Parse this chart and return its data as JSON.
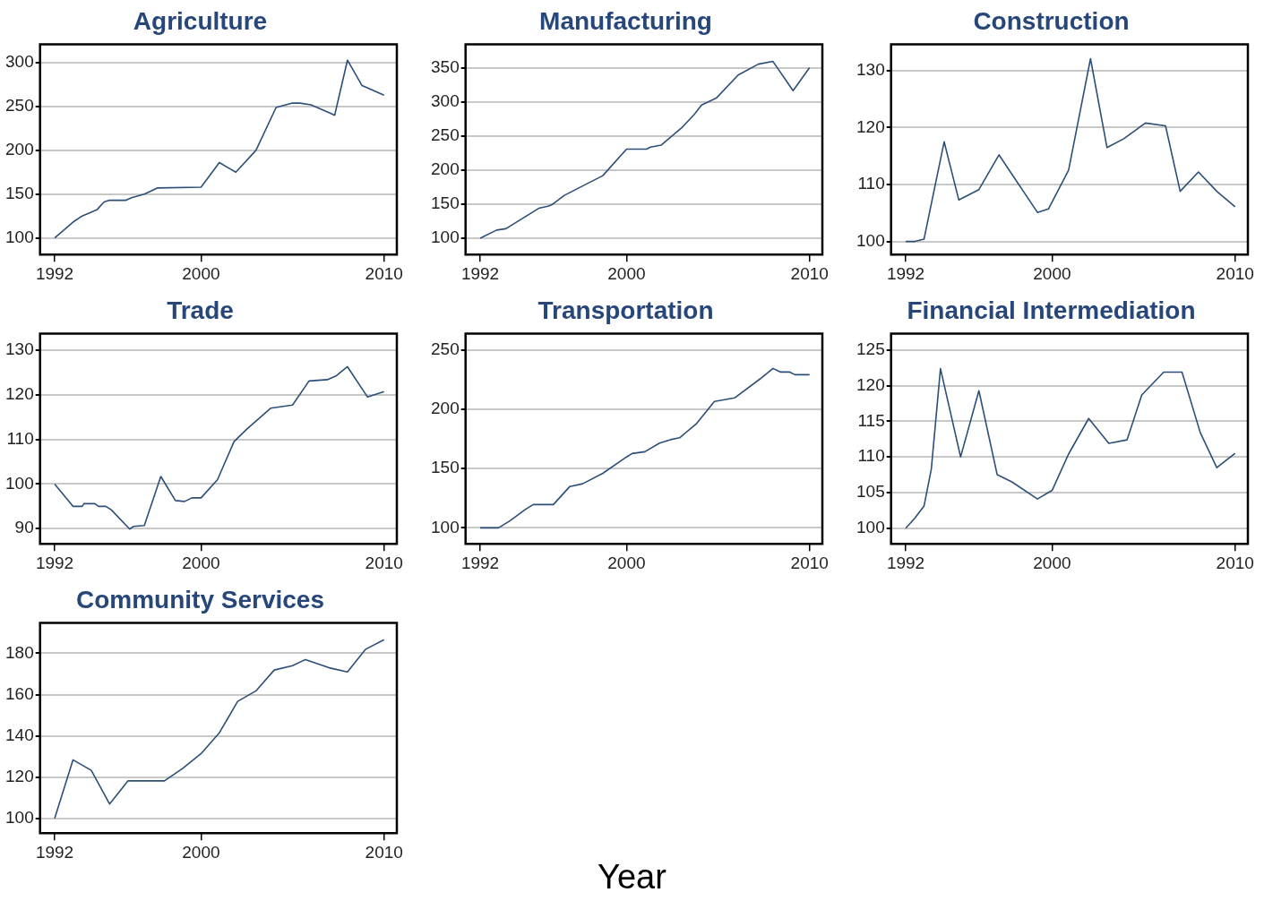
{
  "chart_data": [
    {
      "type": "line",
      "title": "Agriculture",
      "color": "#2c4f78",
      "grid": "y",
      "marker": "none",
      "xlim": [
        1991.2,
        2010.7
      ],
      "xticks": [
        1992,
        2000,
        2010
      ],
      "ylim": [
        81,
        321
      ],
      "yticks": [
        100,
        150,
        200,
        250,
        300
      ],
      "x": [
        1992,
        1992.5,
        1993,
        1993.5,
        1994.3,
        1994.7,
        1995,
        1995.9,
        1996.2,
        1996.9,
        1997.6,
        2000,
        2001,
        2001.9,
        2003,
        2004.1,
        2005,
        2005.4,
        2006,
        2007.1,
        2007.3,
        2008,
        2008.8,
        2010
      ],
      "values": [
        100,
        109,
        118,
        125,
        132,
        141,
        143,
        143,
        146,
        150,
        157,
        158,
        186,
        175,
        200,
        249,
        254,
        254,
        252,
        242,
        240,
        303,
        274,
        263
      ]
    },
    {
      "type": "line",
      "title": "Manufacturing",
      "color": "#2c4f78",
      "grid": "y",
      "marker": "none",
      "xlim": [
        1991.2,
        2010.7
      ],
      "xticks": [
        1992,
        2000,
        2010
      ],
      "ylim": [
        76,
        385
      ],
      "yticks": [
        100,
        150,
        200,
        250,
        300,
        350
      ],
      "x": [
        1992,
        1992.9,
        1993.4,
        1995.2,
        1995.7,
        1995.9,
        1996.6,
        1998.7,
        2000,
        2001.1,
        2001.3,
        2001.9,
        2003,
        2003.7,
        2004.1,
        2004.9,
        2006.1,
        2007.2,
        2008,
        2009.1,
        2010
      ],
      "values": [
        100,
        112,
        114,
        144,
        147,
        149,
        163,
        192,
        231,
        231,
        234,
        237,
        262,
        282,
        296,
        306,
        340,
        356,
        360,
        317,
        351
      ]
    },
    {
      "type": "line",
      "title": "Construction",
      "color": "#2c4f78",
      "grid": "y",
      "marker": "none",
      "xlim": [
        1991.2,
        2010.7
      ],
      "xticks": [
        1992,
        2000,
        2010
      ],
      "ylim": [
        97.7,
        134.6
      ],
      "yticks": [
        100,
        110,
        120,
        130
      ],
      "x": [
        1992,
        1992.5,
        1993,
        1994.1,
        1994.9,
        1996,
        1997.1,
        1999.2,
        1999.8,
        2000.9,
        2002.1,
        2003,
        2003.9,
        2005.1,
        2006.2,
        2007,
        2008,
        2009,
        2010
      ],
      "values": [
        100,
        100,
        100.4,
        117.5,
        107.3,
        109.1,
        115.2,
        105.1,
        105.7,
        112.5,
        132.1,
        116.5,
        118,
        120.8,
        120.3,
        108.8,
        112.2,
        108.8,
        106.1
      ]
    },
    {
      "type": "line",
      "title": "Trade",
      "color": "#2c4f78",
      "grid": "y",
      "marker": "none",
      "xlim": [
        1991.2,
        2010.7
      ],
      "xticks": [
        1992,
        2000,
        2010
      ],
      "ylim": [
        86.6,
        133.7
      ],
      "yticks": [
        90,
        100,
        110,
        120,
        130
      ],
      "x": [
        1992,
        1993,
        1993.5,
        1993.6,
        1994.2,
        1994.4,
        1994.8,
        1995.1,
        1996.1,
        1996.3,
        1996.9,
        1997.8,
        1998.6,
        1999.1,
        1999.5,
        2000,
        2000.9,
        2001.8,
        2002.5,
        2003.8,
        2005,
        2005.9,
        2006.9,
        2007.4,
        2008,
        2009.1,
        2010
      ],
      "values": [
        100,
        95,
        95,
        95.6,
        95.6,
        95,
        95,
        94.2,
        89.9,
        90.5,
        90.7,
        101.7,
        96.3,
        96.1,
        96.9,
        96.9,
        101,
        109.5,
        112.3,
        117,
        117.7,
        123.1,
        123.4,
        124.3,
        126.3,
        119.5,
        120.7
      ]
    },
    {
      "type": "line",
      "title": "Transportation",
      "color": "#2c4f78",
      "grid": "y",
      "marker": "none",
      "xlim": [
        1991.2,
        2010.7
      ],
      "xticks": [
        1992,
        2000,
        2010
      ],
      "ylim": [
        86.5,
        263.8
      ],
      "yticks": [
        100,
        150,
        200,
        250
      ],
      "x": [
        1992,
        1993,
        1993.6,
        1994.5,
        1994.9,
        1996,
        1996.9,
        1997.6,
        1998.7,
        2000,
        2000.3,
        2001,
        2001.8,
        2002.4,
        2002.9,
        2003.8,
        2004.8,
        2005.9,
        2007.3,
        2008,
        2008.4,
        2008.9,
        2009.2,
        2010
      ],
      "values": [
        100,
        100,
        105.6,
        115.8,
        119.6,
        119.6,
        134.9,
        137.2,
        146,
        159.8,
        162.7,
        164.2,
        171.5,
        174.4,
        176,
        187.6,
        206.6,
        209.6,
        225.7,
        234.5,
        231.5,
        231.5,
        229.2,
        229.2
      ]
    },
    {
      "type": "line",
      "title": "Financial Intermediation",
      "color": "#2c4f78",
      "grid": "y",
      "marker": "none",
      "xlim": [
        1991.2,
        2010.7
      ],
      "xticks": [
        1992,
        2000,
        2010
      ],
      "ylim": [
        97.8,
        127.3
      ],
      "yticks": [
        100,
        105,
        110,
        115,
        120,
        125
      ],
      "x": [
        1992,
        1992.5,
        1993,
        1993.4,
        1993.9,
        1995,
        1996,
        1997,
        1997.8,
        1999.2,
        2000,
        2000.9,
        2002,
        2003.1,
        2004.1,
        2004.9,
        2006.1,
        2007.1,
        2008.1,
        2009,
        2010
      ],
      "values": [
        100,
        101.4,
        103.1,
        108.3,
        122.4,
        110,
        119.3,
        107.5,
        106.5,
        104.1,
        105.3,
        110.4,
        115.4,
        111.9,
        112.4,
        118.7,
        121.9,
        121.9,
        113.4,
        108.5,
        110.5
      ]
    },
    {
      "type": "line",
      "title": "Community Services",
      "xlabel": "Year",
      "color": "#2c4f78",
      "grid": "y",
      "marker": "none",
      "xlim": [
        1991.2,
        2010.7
      ],
      "xticks": [
        1992,
        2000,
        2010
      ],
      "ylim": [
        92.9,
        194.7
      ],
      "yticks": [
        100,
        120,
        140,
        160,
        180
      ],
      "x": [
        1992,
        1993,
        1994,
        1995,
        1996,
        1998,
        1999,
        2000,
        2001,
        2002,
        2003,
        2004,
        2005,
        2005.7,
        2007,
        2008,
        2009,
        2010
      ],
      "values": [
        100,
        128.4,
        123.3,
        107,
        118.2,
        118.2,
        124.3,
        131.4,
        141.5,
        156.7,
        161.8,
        171.9,
        174,
        177,
        173,
        171,
        182,
        186.6
      ]
    }
  ]
}
